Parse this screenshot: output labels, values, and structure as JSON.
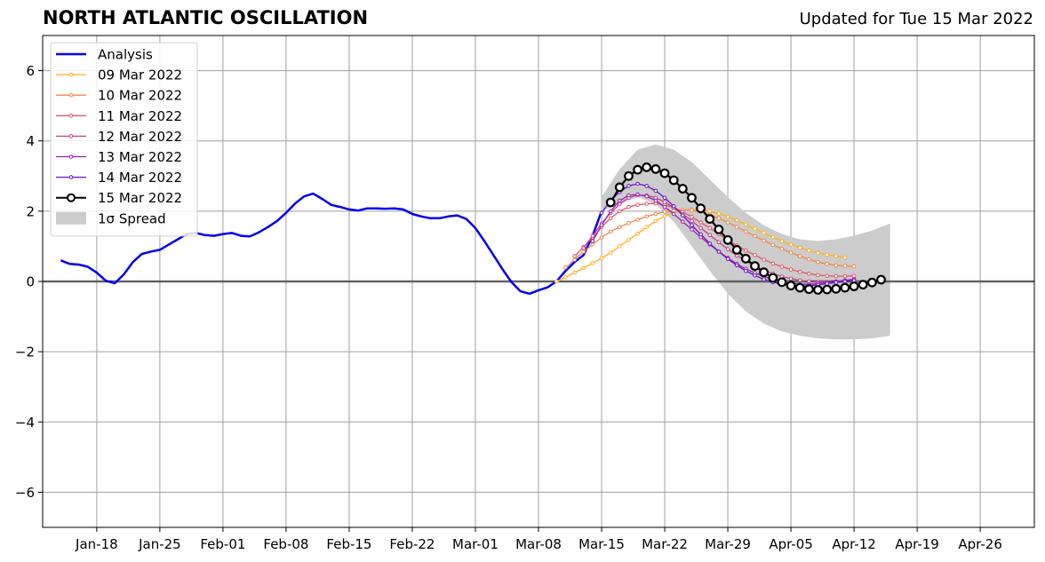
{
  "header": {
    "title": "NORTH ATLANTIC OSCILLATION",
    "updated": "Updated for Tue 15 Mar 2022"
  },
  "chart_data": {
    "type": "line",
    "title": "NORTH ATLANTIC OSCILLATION",
    "subtitle": "Updated for Tue 15 Mar 2022",
    "xlabel": "",
    "ylabel": "",
    "xlim": [
      "2022-01-12",
      "2022-05-02"
    ],
    "ylim": [
      -7,
      7
    ],
    "yticks": [
      -6,
      -4,
      -2,
      0,
      2,
      4,
      6
    ],
    "ytick_labels": [
      "−6",
      "−4",
      "−2",
      "0",
      "2",
      "4",
      "6"
    ],
    "xticks": [
      "2022-01-18",
      "2022-01-25",
      "2022-02-01",
      "2022-02-08",
      "2022-02-15",
      "2022-02-22",
      "2022-03-01",
      "2022-03-08",
      "2022-03-15",
      "2022-03-22",
      "2022-03-29",
      "2022-04-05",
      "2022-04-12",
      "2022-04-19",
      "2022-04-26"
    ],
    "xtick_labels": [
      "Jan-18",
      "Jan-25",
      "Feb-01",
      "Feb-08",
      "Feb-15",
      "Feb-22",
      "Mar-01",
      "Mar-08",
      "Mar-15",
      "Mar-22",
      "Mar-29",
      "Apr-05",
      "Apr-12",
      "Apr-19",
      "Apr-26"
    ],
    "grid": true,
    "legend_position": "top-left",
    "zero_line": true,
    "analysis": {
      "name": "Analysis",
      "color": "#0000ee",
      "points": [
        [
          "2022-01-14",
          0.6
        ],
        [
          "2022-01-15",
          0.5
        ],
        [
          "2022-01-16",
          0.48
        ],
        [
          "2022-01-17",
          0.42
        ],
        [
          "2022-01-18",
          0.25
        ],
        [
          "2022-01-19",
          0.02
        ],
        [
          "2022-01-20",
          -0.05
        ],
        [
          "2022-01-21",
          0.2
        ],
        [
          "2022-01-22",
          0.55
        ],
        [
          "2022-01-23",
          0.78
        ],
        [
          "2022-01-24",
          0.85
        ],
        [
          "2022-01-25",
          0.9
        ],
        [
          "2022-01-26",
          1.05
        ],
        [
          "2022-01-27",
          1.2
        ],
        [
          "2022-01-28",
          1.35
        ],
        [
          "2022-01-29",
          1.38
        ],
        [
          "2022-01-30",
          1.32
        ],
        [
          "2022-01-31",
          1.3
        ],
        [
          "2022-02-01",
          1.35
        ],
        [
          "2022-02-02",
          1.38
        ],
        [
          "2022-02-03",
          1.3
        ],
        [
          "2022-02-04",
          1.28
        ],
        [
          "2022-02-05",
          1.4
        ],
        [
          "2022-02-06",
          1.55
        ],
        [
          "2022-02-07",
          1.72
        ],
        [
          "2022-02-08",
          1.95
        ],
        [
          "2022-02-09",
          2.22
        ],
        [
          "2022-02-10",
          2.42
        ],
        [
          "2022-02-11",
          2.5
        ],
        [
          "2022-02-12",
          2.35
        ],
        [
          "2022-02-13",
          2.18
        ],
        [
          "2022-02-14",
          2.12
        ],
        [
          "2022-02-15",
          2.05
        ],
        [
          "2022-02-16",
          2.02
        ],
        [
          "2022-02-17",
          2.08
        ],
        [
          "2022-02-18",
          2.08
        ],
        [
          "2022-02-19",
          2.07
        ],
        [
          "2022-02-20",
          2.08
        ],
        [
          "2022-02-21",
          2.05
        ],
        [
          "2022-02-22",
          1.92
        ],
        [
          "2022-02-23",
          1.85
        ],
        [
          "2022-02-24",
          1.8
        ],
        [
          "2022-02-25",
          1.8
        ],
        [
          "2022-02-26",
          1.85
        ],
        [
          "2022-02-27",
          1.88
        ],
        [
          "2022-02-28",
          1.78
        ],
        [
          "2022-03-01",
          1.52
        ],
        [
          "2022-03-02",
          1.15
        ],
        [
          "2022-03-03",
          0.75
        ],
        [
          "2022-03-04",
          0.35
        ],
        [
          "2022-03-05",
          -0.02
        ],
        [
          "2022-03-06",
          -0.28
        ],
        [
          "2022-03-07",
          -0.35
        ],
        [
          "2022-03-08",
          -0.25
        ],
        [
          "2022-03-09",
          -0.17
        ],
        [
          "2022-03-10",
          0.0
        ],
        [
          "2022-03-11",
          0.3
        ],
        [
          "2022-03-12",
          0.55
        ],
        [
          "2022-03-13",
          0.75
        ],
        [
          "2022-03-14",
          1.3
        ],
        [
          "2022-03-15",
          2.0
        ]
      ]
    },
    "spread": {
      "name": "1σ Spread",
      "color": "#cccccc",
      "x": [
        "2022-03-15",
        "2022-03-17",
        "2022-03-19",
        "2022-03-21",
        "2022-03-23",
        "2022-03-25",
        "2022-03-27",
        "2022-03-29",
        "2022-03-31",
        "2022-04-02",
        "2022-04-04",
        "2022-04-06",
        "2022-04-08",
        "2022-04-10",
        "2022-04-12",
        "2022-04-14",
        "2022-04-16"
      ],
      "upper": [
        2.4,
        3.2,
        3.75,
        3.9,
        3.75,
        3.4,
        2.9,
        2.4,
        1.95,
        1.6,
        1.35,
        1.2,
        1.15,
        1.2,
        1.3,
        1.45,
        1.65
      ],
      "lower": [
        2.0,
        2.2,
        2.4,
        2.2,
        1.7,
        1.0,
        0.3,
        -0.35,
        -0.85,
        -1.2,
        -1.42,
        -1.55,
        -1.62,
        -1.65,
        -1.65,
        -1.62,
        -1.55
      ]
    },
    "series": [
      {
        "name": "09 Mar 2022",
        "color": "#ffb01e",
        "start": "2022-03-10",
        "values": [
          0.0,
          0.12,
          0.25,
          0.38,
          0.52,
          0.66,
          0.82,
          1.0,
          1.18,
          1.36,
          1.55,
          1.72,
          1.86,
          1.96,
          2.02,
          2.05,
          2.04,
          2.0,
          1.93,
          1.84,
          1.74,
          1.62,
          1.5,
          1.38,
          1.26,
          1.15,
          1.05,
          0.96,
          0.88,
          0.81,
          0.76,
          0.72,
          0.68
        ]
      },
      {
        "name": "10 Mar 2022",
        "color": "#f0884a",
        "start": "2022-03-11",
        "values": [
          0.4,
          0.62,
          0.85,
          1.05,
          1.25,
          1.42,
          1.55,
          1.66,
          1.76,
          1.85,
          1.92,
          1.98,
          2.02,
          2.04,
          2.03,
          1.98,
          1.9,
          1.8,
          1.68,
          1.55,
          1.42,
          1.29,
          1.16,
          1.04,
          0.93,
          0.82,
          0.72,
          0.63,
          0.55,
          0.5,
          0.46,
          0.44,
          0.43
        ]
      },
      {
        "name": "11 Mar 2022",
        "color": "#e0576a",
        "start": "2022-03-12",
        "values": [
          0.72,
          0.98,
          1.25,
          1.55,
          1.8,
          2.0,
          2.12,
          2.18,
          2.21,
          2.22,
          2.18,
          2.1,
          1.98,
          1.84,
          1.68,
          1.52,
          1.35,
          1.18,
          1.02,
          0.88,
          0.75,
          0.62,
          0.51,
          0.42,
          0.34,
          0.27,
          0.22,
          0.18,
          0.16,
          0.15,
          0.15,
          0.16
        ]
      },
      {
        "name": "12 Mar 2022",
        "color": "#c5428a",
        "start": "2022-03-13",
        "values": [
          0.95,
          1.3,
          1.65,
          1.95,
          2.2,
          2.38,
          2.46,
          2.45,
          2.38,
          2.26,
          2.1,
          1.92,
          1.72,
          1.52,
          1.32,
          1.12,
          0.92,
          0.74,
          0.58,
          0.44,
          0.32,
          0.22,
          0.14,
          0.08,
          0.03,
          0.0,
          -0.02,
          -0.02,
          0.0,
          0.03,
          0.06
        ]
      },
      {
        "name": "13 Mar 2022",
        "color": "#9b20b0",
        "start": "2022-03-14",
        "values": [
          1.15,
          1.6,
          2.0,
          2.3,
          2.45,
          2.48,
          2.42,
          2.3,
          2.12,
          1.92,
          1.7,
          1.48,
          1.26,
          1.05,
          0.85,
          0.67,
          0.5,
          0.36,
          0.24,
          0.14,
          0.06,
          0.0,
          -0.05,
          -0.08,
          -0.08,
          -0.06,
          -0.03,
          0.0,
          0.03,
          0.06
        ]
      },
      {
        "name": "14 Mar 2022",
        "color": "#6a10c8",
        "start": "2022-03-15",
        "values": [
          1.95,
          2.3,
          2.55,
          2.72,
          2.78,
          2.72,
          2.58,
          2.38,
          2.14,
          1.88,
          1.6,
          1.34,
          1.08,
          0.85,
          0.64,
          0.46,
          0.3,
          0.17,
          0.06,
          -0.02,
          -0.08,
          -0.12,
          -0.13,
          -0.12,
          -0.1,
          -0.06,
          -0.03,
          0.0,
          0.03
        ]
      },
      {
        "name": "15 Mar 2022",
        "color": "#000000",
        "start": "2022-03-16",
        "values": [
          2.25,
          2.68,
          3.0,
          3.18,
          3.25,
          3.2,
          3.08,
          2.88,
          2.64,
          2.38,
          2.08,
          1.78,
          1.48,
          1.18,
          0.9,
          0.65,
          0.44,
          0.26,
          0.1,
          -0.02,
          -0.12,
          -0.18,
          -0.22,
          -0.24,
          -0.23,
          -0.21,
          -0.18,
          -0.14,
          -0.09,
          -0.03,
          0.05
        ]
      }
    ]
  }
}
